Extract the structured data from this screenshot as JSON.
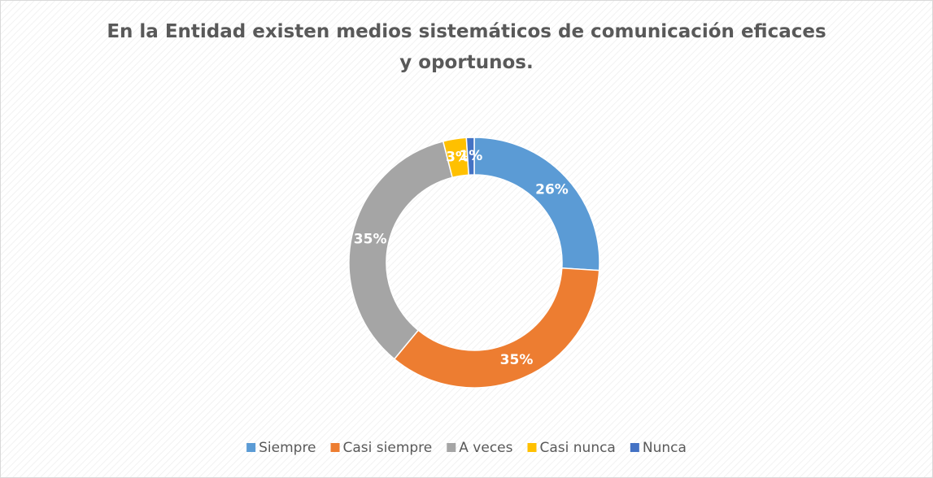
{
  "chart_data": {
    "type": "donut",
    "title": "En la Entidad existen medios sistemáticos de comunicación eficaces y oportunos.",
    "categories": [
      "Siempre",
      "Casi siempre",
      "A veces",
      "Casi nunca",
      "Nunca"
    ],
    "values": [
      26,
      35,
      35,
      3,
      1
    ],
    "value_labels": [
      "26%",
      "35%",
      "35%",
      "3%",
      "1%"
    ],
    "colors": [
      "#5b9bd5",
      "#ed7d31",
      "#a5a5a5",
      "#ffc000",
      "#4472c4"
    ],
    "legend": "bottom"
  }
}
